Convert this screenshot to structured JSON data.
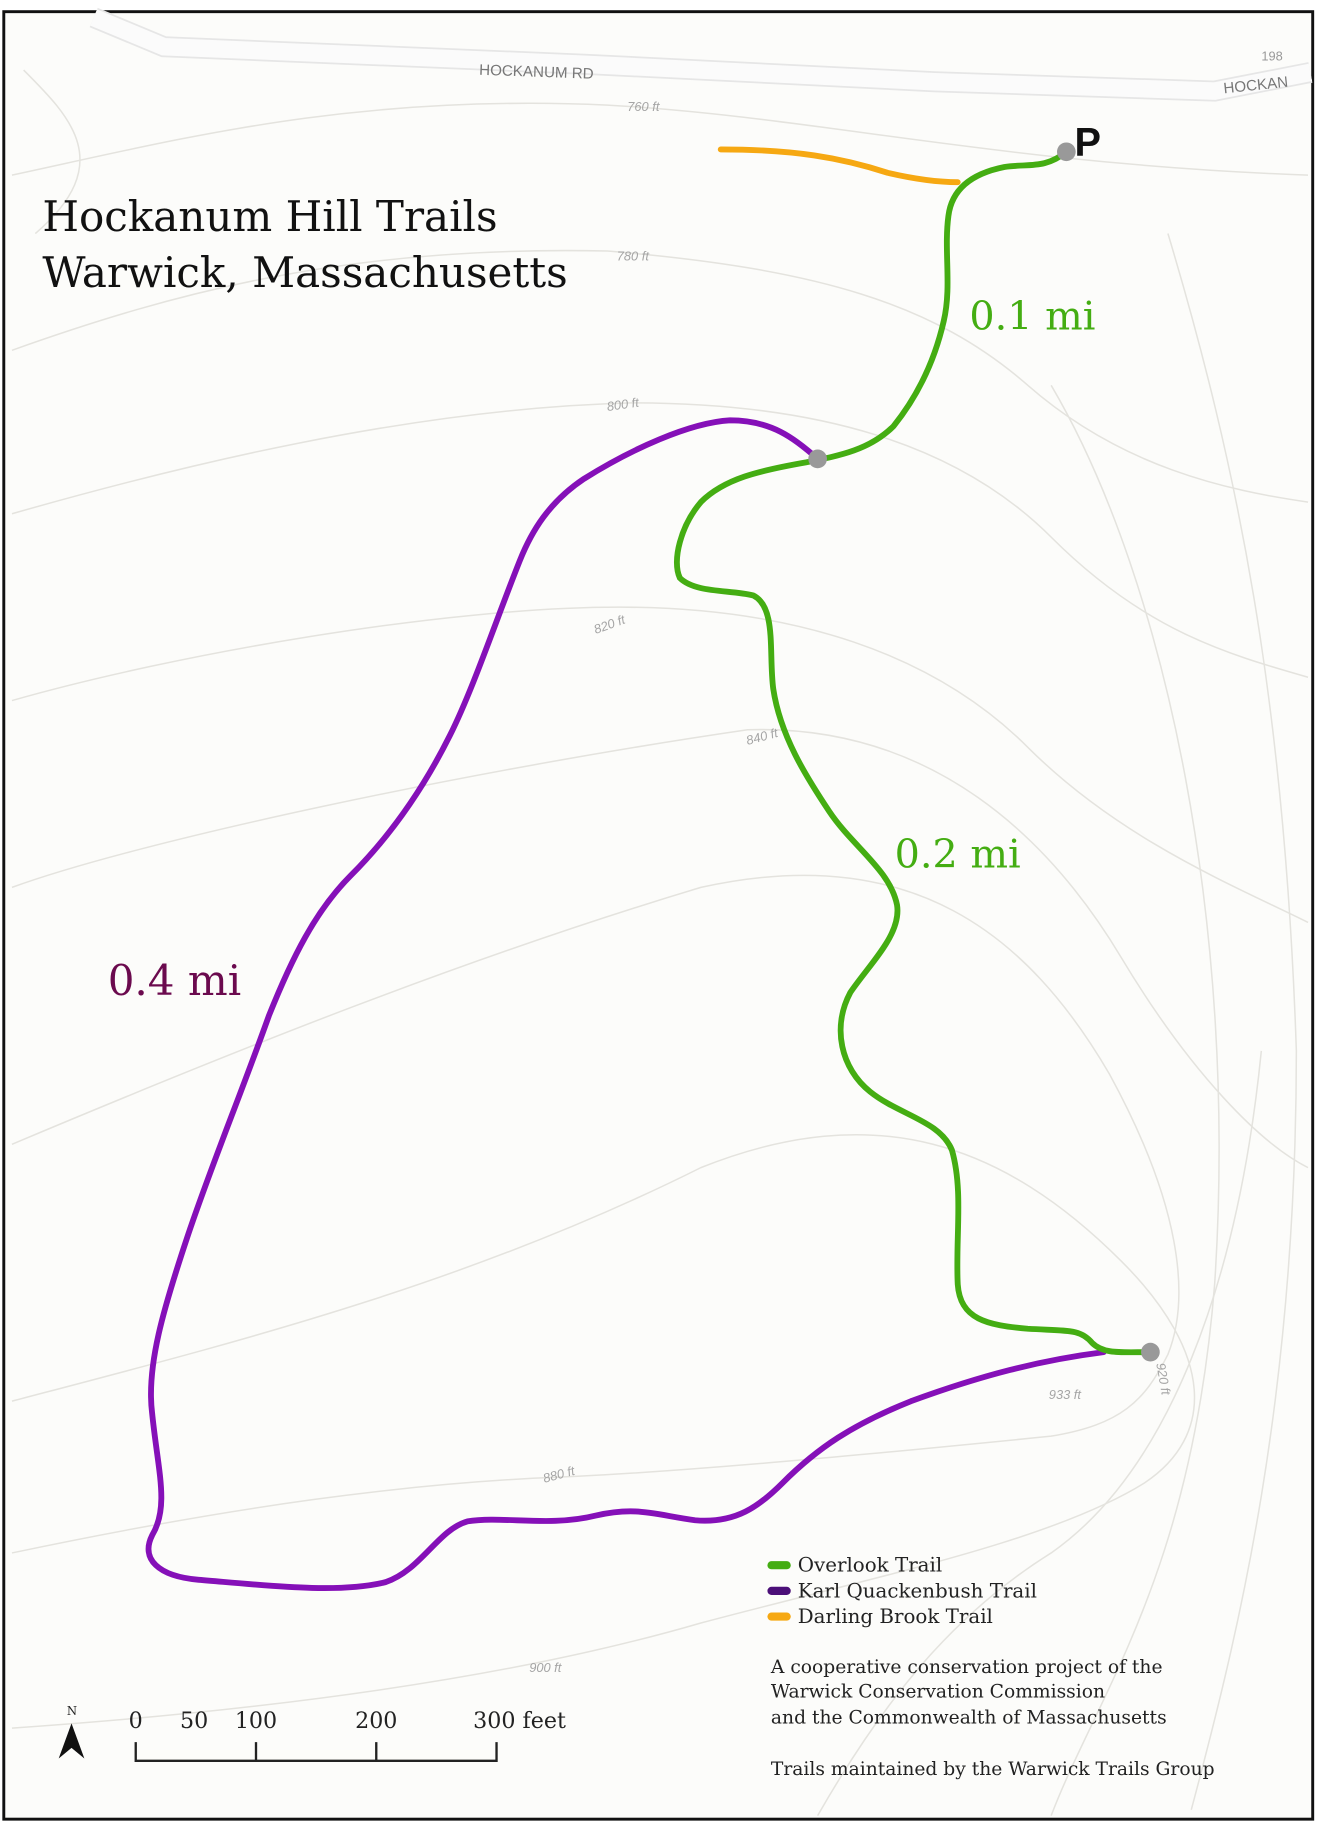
{
  "title": {
    "line1": "Hockanum Hill Trails",
    "line2": "Warwick, Massachusetts"
  },
  "roads": [
    {
      "label": "HOCKANUM RD"
    },
    {
      "label": "HOCKAN"
    },
    {
      "label": "198"
    }
  ],
  "parking": {
    "label": "P"
  },
  "elevations": [
    "760 ft",
    "780 ft",
    "800 ft",
    "820 ft",
    "840 ft",
    "880 ft",
    "900 ft",
    "920 ft",
    "933 ft"
  ],
  "distances": {
    "overlook_upper": "0.1 mi",
    "overlook_lower": "0.2 mi",
    "quackenbush": "0.4 mi"
  },
  "legend": [
    {
      "label": "Overlook Trail",
      "color": "#44ad12"
    },
    {
      "label": "Karl Quackenbush Trail",
      "color": "#4b0f78"
    },
    {
      "label": "Darling Brook Trail",
      "color": "#f6a812"
    }
  ],
  "trail_colors": {
    "overlook": "#44ad12",
    "quackenbush": "#8510b8",
    "darling_brook": "#f6a812",
    "quackenbush_label": "#6b0a4e"
  },
  "credits": {
    "line1": "A cooperative conservation project of the",
    "line2": "Warwick Conservation Commission",
    "line3": "and the Commonwealth of Massachusetts",
    "line4": "Trails maintained by the Warwick Trails Group"
  },
  "scale_bar": {
    "ticks": [
      "0",
      "50",
      "100",
      "200",
      "300 feet"
    ]
  },
  "north_arrow": {
    "label": "N"
  }
}
